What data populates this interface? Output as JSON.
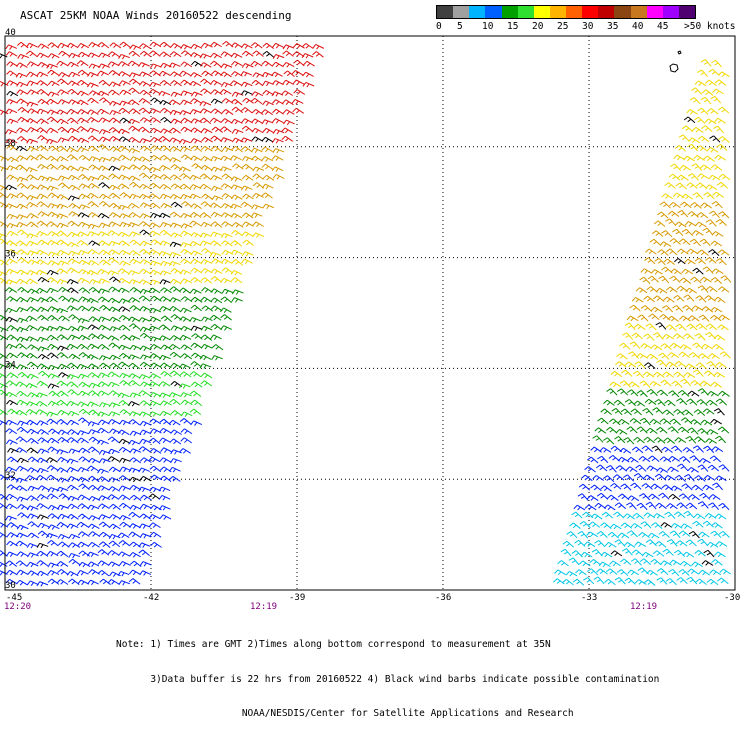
{
  "title": "ASCAT 25KM NOAA Winds 20160522 descending",
  "colorbar": {
    "colors": [
      "#404040",
      "#a0a0a0",
      "#00b4ff",
      "#0060ff",
      "#00a000",
      "#30e030",
      "#ffff00",
      "#ffb400",
      "#ff6000",
      "#ff0000",
      "#c00000",
      "#8b4513",
      "#c8781e",
      "#ff00ff",
      "#a000ff",
      "#500070"
    ],
    "labels": [
      "0",
      "5",
      "10",
      "15",
      "20",
      "25",
      "30",
      "35",
      "40",
      "45",
      ">50 knots"
    ],
    "legend": [
      {
        "name": "blue",
        "color": "#0020ff"
      },
      {
        "name": "green",
        "color": "#008800"
      },
      {
        "name": "lightgreen",
        "color": "#22dd22"
      },
      {
        "name": "yellow",
        "color": "#f0d800"
      },
      {
        "name": "orange",
        "color": "#d89a00"
      },
      {
        "name": "red",
        "color": "#dd1010"
      },
      {
        "name": "brown",
        "color": "#8b4a1a"
      },
      {
        "name": "magenta",
        "color": "#ee00ee"
      },
      {
        "name": "cyan",
        "color": "#00c8e8"
      },
      {
        "name": "black",
        "color": "#000000"
      }
    ]
  },
  "map": {
    "lon_ticks": [
      -45,
      -42,
      -39,
      -36,
      -33,
      -30
    ],
    "lat_ticks": [
      40,
      38,
      36,
      34,
      32,
      30
    ],
    "lon_labels": [
      "-45",
      "-42",
      "-39",
      "-36",
      "-33",
      "-30"
    ],
    "lat_labels": [
      "40",
      "38",
      "36",
      "34",
      "32",
      "30"
    ],
    "grid_lons": [
      -42,
      -39,
      -36,
      -33
    ],
    "grid_lats": [
      38,
      36,
      34,
      32
    ],
    "time_labels": [
      "12:20",
      "12:19",
      "12:19"
    ],
    "west_swath": {
      "lat_range": [
        30,
        40
      ],
      "lon_west": [
        -45,
        -45
      ],
      "lon_east": [
        -42,
        -38.2
      ],
      "zones": [
        {
          "lat_min": 38.0,
          "lat_max": 40.0,
          "color": "red"
        },
        {
          "lat_min": 36.5,
          "lat_max": 38.0,
          "color": "orange"
        },
        {
          "lat_min": 35.5,
          "lat_max": 36.5,
          "color": "yellow"
        },
        {
          "lat_min": 34.0,
          "lat_max": 35.5,
          "color": "green"
        },
        {
          "lat_min": 33.0,
          "lat_max": 34.0,
          "color": "lightgreen"
        },
        {
          "lat_min": 30.0,
          "lat_max": 33.0,
          "color": "blue"
        }
      ]
    },
    "east_swath": {
      "lat_range": [
        30,
        39.6
      ],
      "lon_west": [
        -33.6,
        -30.5
      ],
      "lon_east": [
        -30,
        -30
      ],
      "zones": [
        {
          "lat_min": 37.0,
          "lat_max": 39.6,
          "color": "yellow"
        },
        {
          "lat_min": 34.8,
          "lat_max": 37.0,
          "color": "orange"
        },
        {
          "lat_min": 33.6,
          "lat_max": 34.8,
          "color": "yellow"
        },
        {
          "lat_min": 32.6,
          "lat_max": 33.6,
          "color": "green"
        },
        {
          "lat_min": 31.3,
          "lat_max": 32.6,
          "color": "blue"
        },
        {
          "lat_min": 30.0,
          "lat_max": 31.3,
          "color": "cyan"
        }
      ]
    }
  },
  "notes": {
    "line1": "Note: 1) Times are GMT 2)Times along bottom correspond to measurement at 35N",
    "line2": "      3)Data buffer is 22 hrs from 20160522 4) Black wind barbs indicate possible contamination",
    "line3": "                      NOAA/NESDIS/Center for Satellite Applications and Research"
  }
}
